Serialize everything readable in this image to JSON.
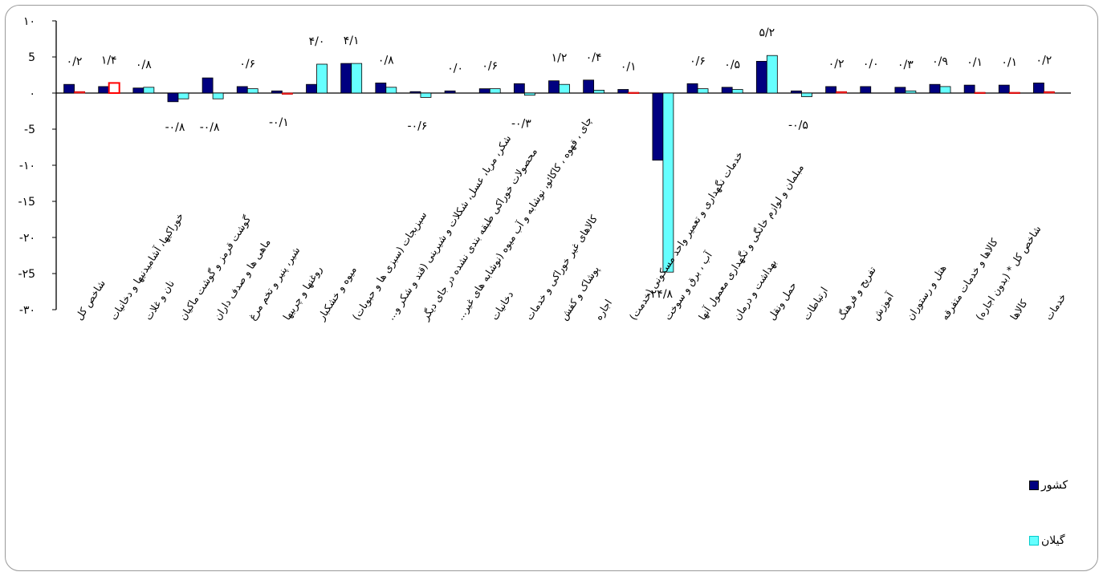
{
  "chart_data": {
    "type": "bar",
    "ylim": [
      -30,
      10
    ],
    "yticks": [
      10,
      5,
      0,
      -5,
      -10,
      -15,
      -20,
      -25,
      -30
    ],
    "ytick_labels": [
      "۱۰",
      "5",
      "۰",
      "-5",
      "-۱۰",
      "-۱5",
      "-۲۰",
      "-۲5",
      "-۳۰"
    ],
    "grid": false,
    "legend_placement": "bottom-right",
    "categories": [
      "شاخص کل",
      "خوراکیها، آشامیدنیها و دخانیات",
      "نان و غلات",
      "گوشت قرمز و گوشت ماکیان",
      "ماهی ها و صدف داران",
      "شیر، پنیر و تخم مرغ",
      "روغنها و چربیها",
      "میوه و خشکبار",
      "سبزیجات (سبزی ها و حبوبات)",
      "شکر، مربا، عسل، شکلات و شیرینی (قند و شکر و...",
      "محصولات خوراکی طبقه بندی نشده در جای دیگر",
      "چای ، قهوه ، کاکائو، نوشابه و آب میوه (نوشابه های غیر...",
      "دخانیات",
      "کالاهای غیر خوراکی و خدمات",
      "پوشاک و کفش",
      "اجاره",
      "خدمات نگهداری و تعمیر واحد مسکونی (خدمت)",
      "آب ، برق و سوخت",
      "مبلمان و لوازم خانگی و نگهداری معمول آنها",
      "بهداشت و درمان",
      "حمل ونقل",
      "ارتباطات",
      "تفریح و فرهنگ",
      "آموزش",
      "هتل و رستوران",
      "کالاها و خدمات متفرقه",
      "شاخص کل * (بدون اجاره)",
      "کالاها",
      "خدمات"
    ],
    "series": [
      {
        "name": "کشور",
        "color": "#000080",
        "values": [
          1.2,
          0.9,
          0.7,
          -1.2,
          2.1,
          0.9,
          0.3,
          1.2,
          4.1,
          1.4,
          0.2,
          0.3,
          0.6,
          1.3,
          1.7,
          1.8,
          0.5,
          -9.3,
          1.3,
          0.8,
          4.4,
          0.3,
          0.9,
          0.9,
          0.8,
          1.2,
          1.1,
          1.1,
          1.4
        ]
      },
      {
        "name": "گیلان",
        "color": "#66FFFF",
        "values": [
          0.2,
          1.4,
          0.8,
          -0.8,
          -0.8,
          0.6,
          -0.1,
          4.0,
          4.1,
          0.8,
          -0.6,
          0.0,
          0.6,
          -0.3,
          1.2,
          0.4,
          0.1,
          -24.8,
          0.6,
          0.5,
          5.2,
          -0.5,
          0.2,
          0.0,
          0.3,
          0.9,
          0.1,
          0.1,
          0.2
        ]
      }
    ],
    "data_labels": [
      "۰/۲",
      "۱/۴",
      "۰/۸",
      "-۰/۸",
      "-۰/۸",
      "۰/۶",
      "-۰/۱",
      "۴/۰",
      "۴/۱",
      "۰/۸",
      "-۰/۶",
      "۰/۰",
      "۰/۶",
      "-۰/۳",
      "۱/۲",
      "۰/۴",
      "۰/۱",
      "-۲۴/۸",
      "۰/۶",
      "۰/۵",
      "۵/۲",
      "-۰/۵",
      "۰/۲",
      "۰/۰",
      "۰/۳",
      "۰/۹",
      "۰/۱",
      "۰/۱",
      "۰/۲"
    ],
    "label_colors": {
      "default_outline": "#000000",
      "highlight_outline": "#FF0000"
    }
  },
  "legend": {
    "country_label": "کشور",
    "gilan_label": "گیلان"
  }
}
